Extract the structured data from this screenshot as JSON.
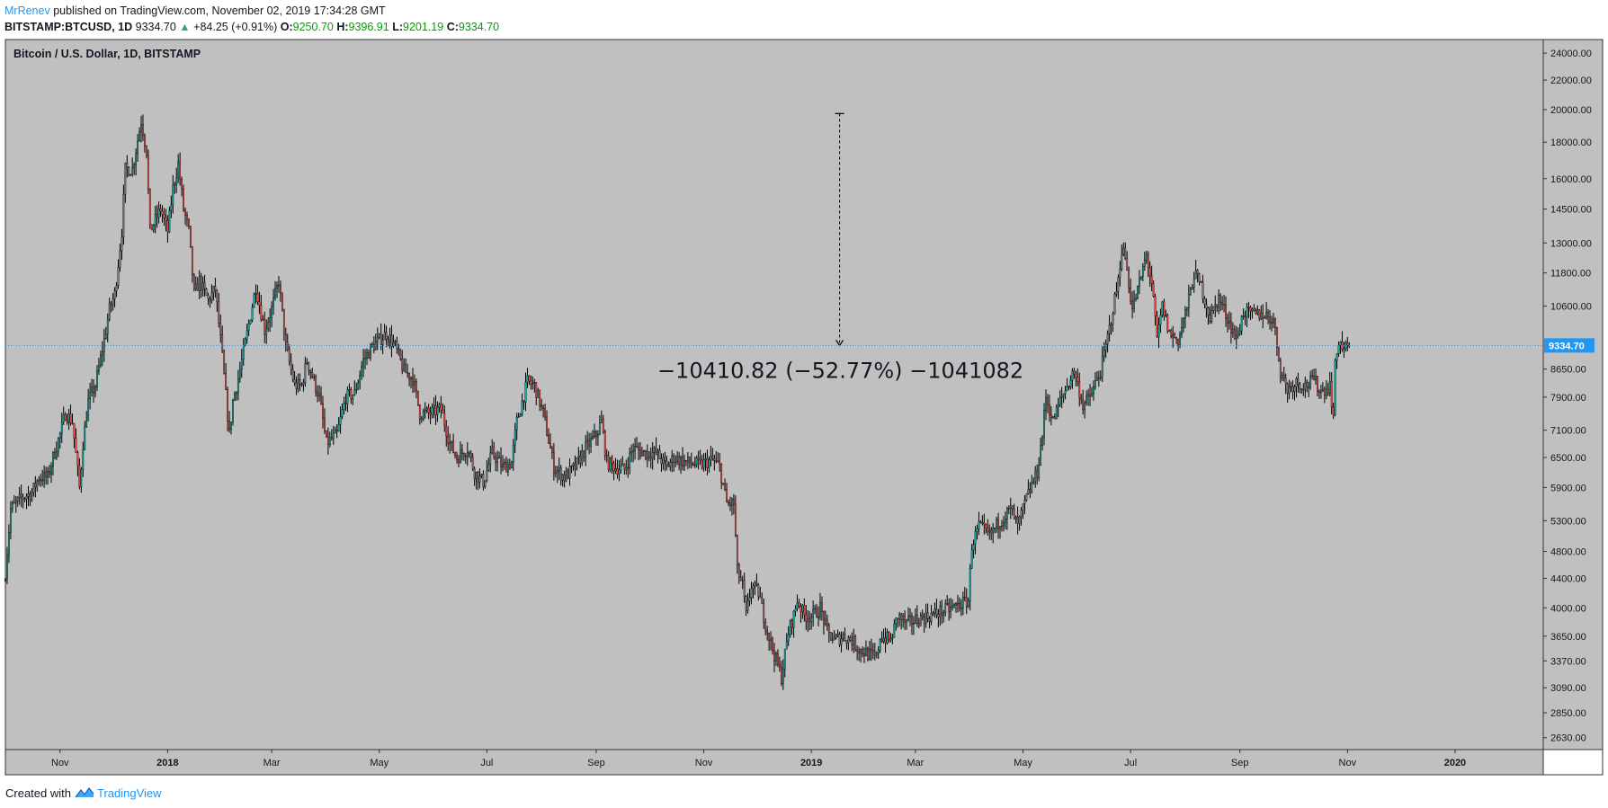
{
  "header": {
    "author": "MrRenev",
    "published_text": "published on TradingView.com, November 02, 2019 17:34:28 GMT",
    "symbol": "BITSTAMP:BTCUSD, 1D",
    "last": "9334.70",
    "change": "+84.25 (+0.91%)",
    "o_label": "O:",
    "o_value": "9250.70",
    "h_label": "H:",
    "h_value": "9396.91",
    "l_label": "L:",
    "l_value": "9201.19",
    "c_label": "C:",
    "c_value": "9334.70"
  },
  "footer": {
    "created_with": "Created with",
    "brand": "TradingView"
  },
  "colors": {
    "background": "#c0c0c0",
    "up": "#26a69a",
    "down": "#ef5350",
    "price_line": "#2196f3",
    "label_bg": "#2196f3"
  },
  "chart_data": {
    "type": "candlestick",
    "title": "Bitcoin / U.S. Dollar, 1D, BITSTAMP",
    "y_scale": "log",
    "ylim": [
      2560,
      24500
    ],
    "y_ticks": [
      "24000.00",
      "22000.00",
      "20000.00",
      "18000.00",
      "16000.00",
      "14500.00",
      "13000.00",
      "11800.00",
      "10600.00",
      "8650.00",
      "7900.00",
      "7100.00",
      "6500.00",
      "5900.00",
      "5300.00",
      "4800.00",
      "4400.00",
      "4000.00",
      "3650.00",
      "3370.00",
      "3090.00",
      "2850.00",
      "2630.00"
    ],
    "x_range": [
      "2017-10-01",
      "2020-02-20"
    ],
    "x_ticks": [
      {
        "date": "2017-11-01",
        "label": "Nov",
        "bold": false
      },
      {
        "date": "2018-01-01",
        "label": "2018",
        "bold": true
      },
      {
        "date": "2018-03-01",
        "label": "Mar",
        "bold": false
      },
      {
        "date": "2018-05-01",
        "label": "May",
        "bold": false
      },
      {
        "date": "2018-07-01",
        "label": "Jul",
        "bold": false
      },
      {
        "date": "2018-09-01",
        "label": "Sep",
        "bold": false
      },
      {
        "date": "2018-11-01",
        "label": "Nov",
        "bold": false
      },
      {
        "date": "2019-01-01",
        "label": "2019",
        "bold": true
      },
      {
        "date": "2019-03-01",
        "label": "Mar",
        "bold": false
      },
      {
        "date": "2019-05-01",
        "label": "May",
        "bold": false
      },
      {
        "date": "2019-07-01",
        "label": "Jul",
        "bold": false
      },
      {
        "date": "2019-09-01",
        "label": "Sep",
        "bold": false
      },
      {
        "date": "2019-11-01",
        "label": "Nov",
        "bold": false
      },
      {
        "date": "2020-01-01",
        "label": "2020",
        "bold": true
      }
    ],
    "price_close_series": [
      [
        "2017-10-01",
        4500
      ],
      [
        "2017-10-04",
        5500
      ],
      [
        "2017-10-10",
        5700
      ],
      [
        "2017-10-16",
        5800
      ],
      [
        "2017-10-20",
        6100
      ],
      [
        "2017-10-25",
        6100
      ],
      [
        "2017-10-28",
        6500
      ],
      [
        "2017-11-01",
        7000
      ],
      [
        "2017-11-04",
        7500
      ],
      [
        "2017-11-08",
        7300
      ],
      [
        "2017-11-12",
        5900
      ],
      [
        "2017-11-14",
        6800
      ],
      [
        "2017-11-17",
        7800
      ],
      [
        "2017-11-21",
        8200
      ],
      [
        "2017-11-26",
        9500
      ],
      [
        "2017-11-29",
        10500
      ],
      [
        "2017-12-02",
        11000
      ],
      [
        "2017-12-06",
        13500
      ],
      [
        "2017-12-08",
        16500
      ],
      [
        "2017-12-12",
        16500
      ],
      [
        "2017-12-17",
        19300
      ],
      [
        "2017-12-20",
        17500
      ],
      [
        "2017-12-22",
        13500
      ],
      [
        "2017-12-25",
        14000
      ],
      [
        "2017-12-28",
        14500
      ],
      [
        "2018-01-01",
        13500
      ],
      [
        "2018-01-04",
        15500
      ],
      [
        "2018-01-07",
        16800
      ],
      [
        "2018-01-10",
        14500
      ],
      [
        "2018-01-13",
        13500
      ],
      [
        "2018-01-16",
        11000
      ],
      [
        "2018-01-19",
        11500
      ],
      [
        "2018-01-24",
        10800
      ],
      [
        "2018-01-28",
        11200
      ],
      [
        "2018-02-01",
        9000
      ],
      [
        "2018-02-05",
        7000
      ],
      [
        "2018-02-07",
        7800
      ],
      [
        "2018-02-10",
        8400
      ],
      [
        "2018-02-14",
        9400
      ],
      [
        "2018-02-20",
        11300
      ],
      [
        "2018-02-25",
        9800
      ],
      [
        "2018-03-01",
        10500
      ],
      [
        "2018-03-05",
        11500
      ],
      [
        "2018-03-09",
        9300
      ],
      [
        "2018-03-14",
        8200
      ],
      [
        "2018-03-18",
        8200
      ],
      [
        "2018-03-21",
        8900
      ],
      [
        "2018-03-28",
        7900
      ],
      [
        "2018-04-01",
        6800
      ],
      [
        "2018-04-07",
        7000
      ],
      [
        "2018-04-12",
        7900
      ],
      [
        "2018-04-17",
        8000
      ],
      [
        "2018-04-22",
        8900
      ],
      [
        "2018-04-27",
        9300
      ],
      [
        "2018-05-05",
        9700
      ],
      [
        "2018-05-10",
        9300
      ],
      [
        "2018-05-15",
        8600
      ],
      [
        "2018-05-20",
        8400
      ],
      [
        "2018-05-24",
        7500
      ],
      [
        "2018-05-30",
        7500
      ],
      [
        "2018-06-05",
        7600
      ],
      [
        "2018-06-10",
        6800
      ],
      [
        "2018-06-14",
        6500
      ],
      [
        "2018-06-20",
        6700
      ],
      [
        "2018-06-24",
        6200
      ],
      [
        "2018-06-29",
        6000
      ],
      [
        "2018-07-04",
        6600
      ],
      [
        "2018-07-10",
        6300
      ],
      [
        "2018-07-15",
        6400
      ],
      [
        "2018-07-18",
        7300
      ],
      [
        "2018-07-24",
        8300
      ],
      [
        "2018-07-28",
        8200
      ],
      [
        "2018-08-02",
        7500
      ],
      [
        "2018-08-08",
        6300
      ],
      [
        "2018-08-14",
        6100
      ],
      [
        "2018-08-20",
        6300
      ],
      [
        "2018-08-26",
        6700
      ],
      [
        "2018-09-01",
        7000
      ],
      [
        "2018-09-04",
        7300
      ],
      [
        "2018-09-07",
        6400
      ],
      [
        "2018-09-12",
        6300
      ],
      [
        "2018-09-17",
        6250
      ],
      [
        "2018-09-22",
        6700
      ],
      [
        "2018-09-28",
        6600
      ],
      [
        "2018-10-05",
        6600
      ],
      [
        "2018-10-11",
        6300
      ],
      [
        "2018-10-15",
        6500
      ],
      [
        "2018-10-22",
        6400
      ],
      [
        "2018-10-30",
        6350
      ],
      [
        "2018-11-06",
        6450
      ],
      [
        "2018-11-10",
        6300
      ],
      [
        "2018-11-14",
        5600
      ],
      [
        "2018-11-18",
        5600
      ],
      [
        "2018-11-20",
        4500
      ],
      [
        "2018-11-23",
        4300
      ],
      [
        "2018-11-25",
        3900
      ],
      [
        "2018-11-28",
        4300
      ],
      [
        "2018-12-02",
        4200
      ],
      [
        "2018-12-06",
        3800
      ],
      [
        "2018-12-10",
        3500
      ],
      [
        "2018-12-15",
        3200
      ],
      [
        "2018-12-19",
        3700
      ],
      [
        "2018-12-22",
        3900
      ],
      [
        "2018-12-24",
        4100
      ],
      [
        "2018-12-28",
        3900
      ],
      [
        "2019-01-02",
        3900
      ],
      [
        "2019-01-06",
        4000
      ],
      [
        "2019-01-10",
        3700
      ],
      [
        "2019-01-14",
        3600
      ],
      [
        "2019-01-19",
        3650
      ],
      [
        "2019-01-24",
        3600
      ],
      [
        "2019-01-28",
        3500
      ],
      [
        "2019-02-02",
        3450
      ],
      [
        "2019-02-07",
        3400
      ],
      [
        "2019-02-09",
        3650
      ],
      [
        "2019-02-15",
        3600
      ],
      [
        "2019-02-19",
        3900
      ],
      [
        "2019-02-24",
        3800
      ],
      [
        "2019-03-01",
        3850
      ],
      [
        "2019-03-09",
        3900
      ],
      [
        "2019-03-15",
        3950
      ],
      [
        "2019-03-22",
        4000
      ],
      [
        "2019-03-31",
        4100
      ],
      [
        "2019-04-02",
        4900
      ],
      [
        "2019-04-06",
        5200
      ],
      [
        "2019-04-12",
        5050
      ],
      [
        "2019-04-18",
        5300
      ],
      [
        "2019-04-24",
        5500
      ],
      [
        "2019-04-28",
        5200
      ],
      [
        "2019-05-03",
        5700
      ],
      [
        "2019-05-09",
        6200
      ],
      [
        "2019-05-12",
        7000
      ],
      [
        "2019-05-14",
        7900
      ],
      [
        "2019-05-18",
        7300
      ],
      [
        "2019-05-22",
        7800
      ],
      [
        "2019-05-30",
        8600
      ],
      [
        "2019-06-04",
        7700
      ],
      [
        "2019-06-08",
        7900
      ],
      [
        "2019-06-14",
        8600
      ],
      [
        "2019-06-17",
        9300
      ],
      [
        "2019-06-21",
        10500
      ],
      [
        "2019-06-24",
        11500
      ],
      [
        "2019-06-26",
        12800
      ],
      [
        "2019-06-28",
        12400
      ],
      [
        "2019-07-02",
        10500
      ],
      [
        "2019-07-06",
        11400
      ],
      [
        "2019-07-10",
        12500
      ],
      [
        "2019-07-13",
        11400
      ],
      [
        "2019-07-16",
        9500
      ],
      [
        "2019-07-19",
        10600
      ],
      [
        "2019-07-23",
        9700
      ],
      [
        "2019-07-28",
        9500
      ],
      [
        "2019-08-03",
        10800
      ],
      [
        "2019-08-06",
        11800
      ],
      [
        "2019-08-10",
        11300
      ],
      [
        "2019-08-15",
        10200
      ],
      [
        "2019-08-20",
        10900
      ],
      [
        "2019-08-25",
        10200
      ],
      [
        "2019-08-30",
        9500
      ],
      [
        "2019-09-03",
        10400
      ],
      [
        "2019-09-08",
        10300
      ],
      [
        "2019-09-14",
        10350
      ],
      [
        "2019-09-20",
        10150
      ],
      [
        "2019-09-24",
        8600
      ],
      [
        "2019-09-28",
        8100
      ],
      [
        "2019-10-03",
        8300
      ],
      [
        "2019-10-08",
        8200
      ],
      [
        "2019-10-13",
        8350
      ],
      [
        "2019-10-17",
        8050
      ],
      [
        "2019-10-22",
        8200
      ],
      [
        "2019-10-24",
        7450
      ],
      [
        "2019-10-25",
        8700
      ],
      [
        "2019-10-27",
        9500
      ],
      [
        "2019-10-30",
        9200
      ],
      [
        "2019-11-02",
        9334.7
      ]
    ],
    "annotation": {
      "text": "−10410.82 (−52.77%) −1041082",
      "from": {
        "date": "2019-01-17",
        "price": 19745.52
      },
      "to": {
        "date": "2019-01-17",
        "price": 9334.7
      }
    },
    "last_price": {
      "value": 9334.7,
      "label": "9334.70"
    }
  }
}
